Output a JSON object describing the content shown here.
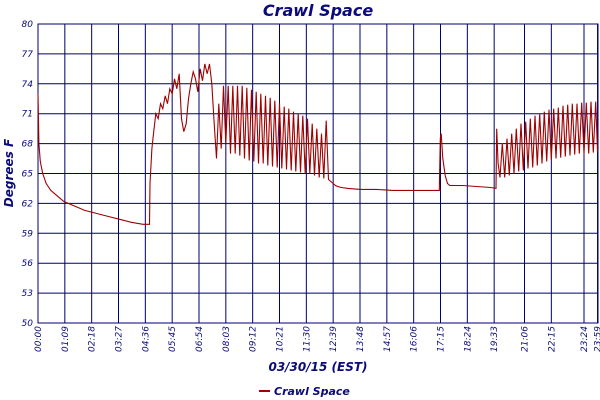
{
  "colors": {
    "text": "#0a0a7a",
    "grid": "#00006e",
    "series": "#a00000",
    "background": "#ffffff"
  },
  "chart_data": {
    "type": "line",
    "title": "Crawl Space",
    "xlabel": "03/30/15 (EST)",
    "ylabel": "Degrees F",
    "ylim": [
      50,
      80
    ],
    "yticks": [
      50,
      53,
      56,
      59,
      62,
      65,
      68,
      71,
      74,
      77,
      80
    ],
    "xlim": [
      0,
      24
    ],
    "xtick_labels": [
      "00:00",
      "01:09",
      "02:18",
      "03:27",
      "04:36",
      "05:45",
      "06:54",
      "08:03",
      "09:12",
      "10:21",
      "11:30",
      "12:39",
      "13:48",
      "14:57",
      "16:06",
      "17:15",
      "18:24",
      "19:33",
      "21:06",
      "22:15",
      "23:24",
      "23:59"
    ],
    "xtick_hours": [
      0,
      1.15,
      2.3,
      3.45,
      4.6,
      5.75,
      6.9,
      8.05,
      9.2,
      10.35,
      11.5,
      12.65,
      13.8,
      14.95,
      16.1,
      17.25,
      18.4,
      19.55,
      20.85,
      22.0,
      23.4,
      23.98
    ],
    "grid": true,
    "legend_position": "bottom-left",
    "series": [
      {
        "name": "Crawl Space",
        "x": [
          0.0,
          0.04,
          0.1,
          0.2,
          0.35,
          0.55,
          0.8,
          1.1,
          1.5,
          2.0,
          2.5,
          3.0,
          3.5,
          4.0,
          4.5,
          4.78,
          4.8,
          4.88,
          4.95,
          5.05,
          5.15,
          5.25,
          5.35,
          5.45,
          5.55,
          5.65,
          5.75,
          5.85,
          5.95,
          6.05,
          6.15,
          6.25,
          6.35,
          6.45,
          6.55,
          6.65,
          6.75,
          6.85,
          6.95,
          7.05,
          7.15,
          7.25,
          7.35,
          7.45,
          7.55,
          7.65,
          7.75,
          7.85,
          7.95,
          8.05,
          8.15,
          8.25,
          8.35,
          8.45,
          8.55,
          8.65,
          8.75,
          8.85,
          8.95,
          9.05,
          9.15,
          9.25,
          9.35,
          9.45,
          9.55,
          9.65,
          9.75,
          9.85,
          9.95,
          10.05,
          10.15,
          10.25,
          10.35,
          10.45,
          10.55,
          10.65,
          10.75,
          10.85,
          10.95,
          11.05,
          11.15,
          11.25,
          11.35,
          11.45,
          11.55,
          11.65,
          11.75,
          11.85,
          11.95,
          12.05,
          12.15,
          12.25,
          12.35,
          12.45,
          12.55,
          12.65,
          12.75,
          12.85,
          13.0,
          13.3,
          13.8,
          14.5,
          15.2,
          16.0,
          16.8,
          17.2,
          17.24,
          17.28,
          17.35,
          17.45,
          17.55,
          17.6,
          17.65,
          17.8,
          18.2,
          18.8,
          19.4,
          19.63,
          19.66,
          19.72,
          19.8,
          19.9,
          20.0,
          20.1,
          20.2,
          20.3,
          20.4,
          20.5,
          20.6,
          20.7,
          20.8,
          20.9,
          21.0,
          21.1,
          21.2,
          21.3,
          21.4,
          21.5,
          21.6,
          21.7,
          21.8,
          21.9,
          22.0,
          22.1,
          22.2,
          22.3,
          22.4,
          22.5,
          22.6,
          22.7,
          22.8,
          22.9,
          23.0,
          23.1,
          23.2,
          23.3,
          23.4,
          23.5,
          23.6,
          23.7,
          23.8,
          23.9,
          23.98
        ],
        "y": [
          73.0,
          68.0,
          66.2,
          65.0,
          64.0,
          63.3,
          62.8,
          62.2,
          61.8,
          61.3,
          61.0,
          60.7,
          60.4,
          60.1,
          59.9,
          59.9,
          64.0,
          67.5,
          69.0,
          71.0,
          70.5,
          72.0,
          71.5,
          72.8,
          72.0,
          73.5,
          73.0,
          74.5,
          73.5,
          75.0,
          70.5,
          69.2,
          70.0,
          72.5,
          74.0,
          75.2,
          74.5,
          73.2,
          75.5,
          74.3,
          76.0,
          75.0,
          76.0,
          74.0,
          70.0,
          66.5,
          72.0,
          67.5,
          73.8,
          68.0,
          73.8,
          67.0,
          73.8,
          67.0,
          73.8,
          66.8,
          73.8,
          66.5,
          73.6,
          66.3,
          73.4,
          66.2,
          73.2,
          66.0,
          73.0,
          66.0,
          72.8,
          65.8,
          72.6,
          65.7,
          72.3,
          65.6,
          72.0,
          65.5,
          71.7,
          65.4,
          71.5,
          65.3,
          71.2,
          65.2,
          71.0,
          65.1,
          70.8,
          65.0,
          70.5,
          65.0,
          70.0,
          64.8,
          69.5,
          64.6,
          69.0,
          64.5,
          70.3,
          64.4,
          64.2,
          64.0,
          63.8,
          63.7,
          63.6,
          63.5,
          63.4,
          63.4,
          63.3,
          63.3,
          63.3,
          63.3,
          68.5,
          69.0,
          66.5,
          64.8,
          64.0,
          63.9,
          63.8,
          63.8,
          63.8,
          63.7,
          63.6,
          63.5,
          69.5,
          66.0,
          64.6,
          68.0,
          64.6,
          68.5,
          64.8,
          69.0,
          65.0,
          69.5,
          65.2,
          70.0,
          65.3,
          70.2,
          65.5,
          70.5,
          65.6,
          70.8,
          65.8,
          71.0,
          66.0,
          71.2,
          66.2,
          71.4,
          66.4,
          71.5,
          66.5,
          71.6,
          66.6,
          71.8,
          66.7,
          71.9,
          66.8,
          72.0,
          66.9,
          72.0,
          67.0,
          72.1,
          67.0,
          72.1,
          67.0,
          72.2,
          67.1,
          72.2,
          67.2
        ]
      }
    ]
  }
}
